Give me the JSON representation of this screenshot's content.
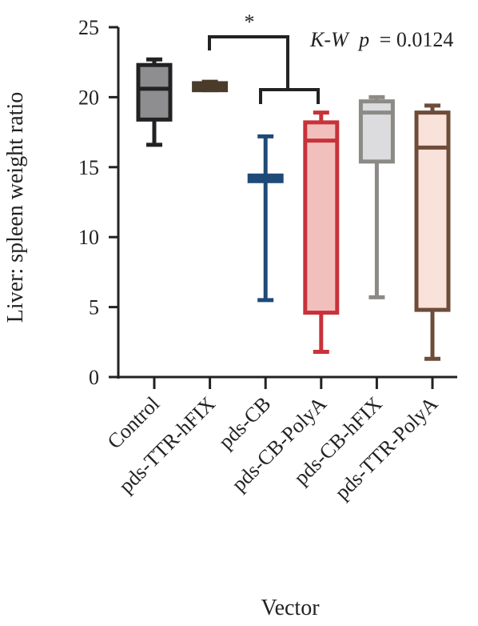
{
  "chart_data": {
    "type": "box",
    "xlabel": "Vector",
    "ylabel": "Liver: spleen weight ratio",
    "ylim": [
      0,
      25
    ],
    "yticks": [
      "0",
      "5",
      "10",
      "15",
      "20",
      "25"
    ],
    "grid": false,
    "categories": [
      "Control",
      "pds-TTR-hFIX",
      "pds-CB",
      "pds-CB-PolyA",
      "pds-CB-hFIX",
      "pds-TTR-PolyA"
    ],
    "boxes": [
      {
        "category": "Control",
        "min": 16.6,
        "q1": 18.4,
        "median": 20.6,
        "q3": 22.3,
        "max": 22.7,
        "edge": "#222222",
        "fill": "#8e8e90"
      },
      {
        "category": "pds-TTR-hFIX",
        "min": 20.5,
        "q1": 20.5,
        "median": 20.7,
        "q3": 21.0,
        "max": 21.1,
        "edge": "#4a3b2a",
        "fill": "#4a3b2a"
      },
      {
        "category": "pds-CB",
        "min": 5.5,
        "q1": 14.0,
        "median": 14.2,
        "q3": 14.4,
        "max": 17.2,
        "edge": "#1f4a78",
        "fill": "#1f4a78"
      },
      {
        "category": "pds-CB-PolyA",
        "min": 1.8,
        "q1": 4.6,
        "median": 16.9,
        "q3": 18.2,
        "max": 18.9,
        "edge": "#c8323a",
        "fill": "#f2c0bc"
      },
      {
        "category": "pds-CB-hFIX",
        "min": 5.7,
        "q1": 15.4,
        "median": 18.9,
        "q3": 19.7,
        "max": 20.0,
        "edge": "#8c8a86",
        "fill": "#dcdcdf"
      },
      {
        "category": "pds-TTR-PolyA",
        "min": 1.3,
        "q1": 4.8,
        "median": 16.4,
        "q3": 18.9,
        "max": 19.4,
        "edge": "#6e4c3a",
        "fill": "#f9e2d9"
      }
    ],
    "annotations": {
      "significance": "*",
      "test_label": "K-W",
      "test_p_symbol": "p",
      "test_p_value": "= 0.0124"
    }
  }
}
